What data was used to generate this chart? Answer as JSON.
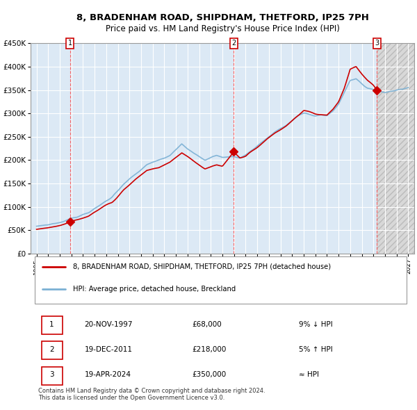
{
  "title": "8, BRADENHAM ROAD, SHIPDHAM, THETFORD, IP25 7PH",
  "subtitle": "Price paid vs. HM Land Registry's House Price Index (HPI)",
  "legend_line1": "8, BRADENHAM ROAD, SHIPDHAM, THETFORD, IP25 7PH (detached house)",
  "legend_line2": "HPI: Average price, detached house, Breckland",
  "transactions": [
    {
      "num": 1,
      "date": "20-NOV-1997",
      "price": 68000,
      "pct": "9% ↓ HPI",
      "year": 1997.89
    },
    {
      "num": 2,
      "date": "19-DEC-2011",
      "price": 218000,
      "pct": "5% ↑ HPI",
      "year": 2011.97
    },
    {
      "num": 3,
      "date": "19-APR-2024",
      "price": 350000,
      "pct": "≈ HPI",
      "year": 2024.3
    }
  ],
  "footnote": "Contains HM Land Registry data © Crown copyright and database right 2024.\nThis data is licensed under the Open Government Licence v3.0.",
  "ylim": [
    0,
    450000
  ],
  "xlim_start": 1994.5,
  "xlim_end": 2027.5,
  "bg_color_main": "#dce9f5",
  "bg_color_future": "#e8e8e8",
  "grid_color": "#ffffff",
  "line_color_property": "#cc0000",
  "line_color_hpi": "#7ab0d4",
  "dashed_line_color": "#ff6666",
  "marker_color": "#cc0000",
  "future_start": 2024.3
}
